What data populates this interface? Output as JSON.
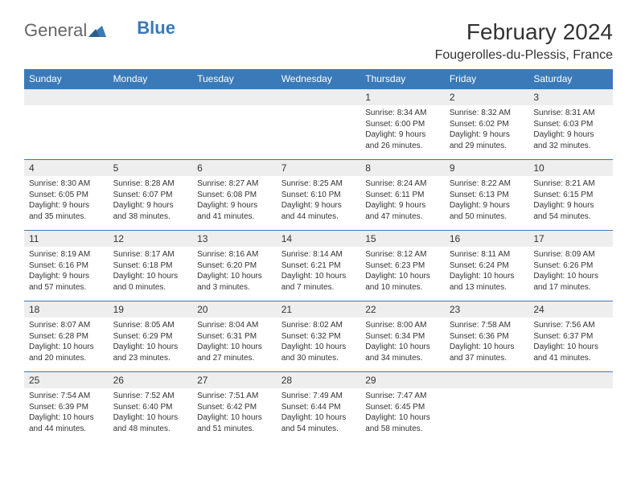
{
  "logo": {
    "general": "General",
    "blue": "Blue"
  },
  "title": "February 2024",
  "location": "Fougerolles-du-Plessis, France",
  "colors": {
    "header_bg": "#3a7ab8",
    "header_text": "#ffffff",
    "daynum_bg": "#eeeeee",
    "border": "#3a7ab8",
    "text": "#333333",
    "logo_gray": "#666666",
    "logo_blue": "#3a7ab8",
    "background": "#ffffff"
  },
  "fonts": {
    "title_size_pt": 28,
    "location_size_pt": 16,
    "dayhead_size_pt": 12,
    "daynum_size_pt": 12,
    "cell_size_pt": 10
  },
  "day_names": [
    "Sunday",
    "Monday",
    "Tuesday",
    "Wednesday",
    "Thursday",
    "Friday",
    "Saturday"
  ],
  "weeks": [
    {
      "nums": [
        "",
        "",
        "",
        "",
        "1",
        "2",
        "3"
      ],
      "cells": [
        {
          "sunrise": "",
          "sunset": "",
          "daylight": ""
        },
        {
          "sunrise": "",
          "sunset": "",
          "daylight": ""
        },
        {
          "sunrise": "",
          "sunset": "",
          "daylight": ""
        },
        {
          "sunrise": "",
          "sunset": "",
          "daylight": ""
        },
        {
          "sunrise": "Sunrise: 8:34 AM",
          "sunset": "Sunset: 6:00 PM",
          "daylight": "Daylight: 9 hours and 26 minutes."
        },
        {
          "sunrise": "Sunrise: 8:32 AM",
          "sunset": "Sunset: 6:02 PM",
          "daylight": "Daylight: 9 hours and 29 minutes."
        },
        {
          "sunrise": "Sunrise: 8:31 AM",
          "sunset": "Sunset: 6:03 PM",
          "daylight": "Daylight: 9 hours and 32 minutes."
        }
      ]
    },
    {
      "nums": [
        "4",
        "5",
        "6",
        "7",
        "8",
        "9",
        "10"
      ],
      "cells": [
        {
          "sunrise": "Sunrise: 8:30 AM",
          "sunset": "Sunset: 6:05 PM",
          "daylight": "Daylight: 9 hours and 35 minutes."
        },
        {
          "sunrise": "Sunrise: 8:28 AM",
          "sunset": "Sunset: 6:07 PM",
          "daylight": "Daylight: 9 hours and 38 minutes."
        },
        {
          "sunrise": "Sunrise: 8:27 AM",
          "sunset": "Sunset: 6:08 PM",
          "daylight": "Daylight: 9 hours and 41 minutes."
        },
        {
          "sunrise": "Sunrise: 8:25 AM",
          "sunset": "Sunset: 6:10 PM",
          "daylight": "Daylight: 9 hours and 44 minutes."
        },
        {
          "sunrise": "Sunrise: 8:24 AM",
          "sunset": "Sunset: 6:11 PM",
          "daylight": "Daylight: 9 hours and 47 minutes."
        },
        {
          "sunrise": "Sunrise: 8:22 AM",
          "sunset": "Sunset: 6:13 PM",
          "daylight": "Daylight: 9 hours and 50 minutes."
        },
        {
          "sunrise": "Sunrise: 8:21 AM",
          "sunset": "Sunset: 6:15 PM",
          "daylight": "Daylight: 9 hours and 54 minutes."
        }
      ]
    },
    {
      "nums": [
        "11",
        "12",
        "13",
        "14",
        "15",
        "16",
        "17"
      ],
      "cells": [
        {
          "sunrise": "Sunrise: 8:19 AM",
          "sunset": "Sunset: 6:16 PM",
          "daylight": "Daylight: 9 hours and 57 minutes."
        },
        {
          "sunrise": "Sunrise: 8:17 AM",
          "sunset": "Sunset: 6:18 PM",
          "daylight": "Daylight: 10 hours and 0 minutes."
        },
        {
          "sunrise": "Sunrise: 8:16 AM",
          "sunset": "Sunset: 6:20 PM",
          "daylight": "Daylight: 10 hours and 3 minutes."
        },
        {
          "sunrise": "Sunrise: 8:14 AM",
          "sunset": "Sunset: 6:21 PM",
          "daylight": "Daylight: 10 hours and 7 minutes."
        },
        {
          "sunrise": "Sunrise: 8:12 AM",
          "sunset": "Sunset: 6:23 PM",
          "daylight": "Daylight: 10 hours and 10 minutes."
        },
        {
          "sunrise": "Sunrise: 8:11 AM",
          "sunset": "Sunset: 6:24 PM",
          "daylight": "Daylight: 10 hours and 13 minutes."
        },
        {
          "sunrise": "Sunrise: 8:09 AM",
          "sunset": "Sunset: 6:26 PM",
          "daylight": "Daylight: 10 hours and 17 minutes."
        }
      ]
    },
    {
      "nums": [
        "18",
        "19",
        "20",
        "21",
        "22",
        "23",
        "24"
      ],
      "cells": [
        {
          "sunrise": "Sunrise: 8:07 AM",
          "sunset": "Sunset: 6:28 PM",
          "daylight": "Daylight: 10 hours and 20 minutes."
        },
        {
          "sunrise": "Sunrise: 8:05 AM",
          "sunset": "Sunset: 6:29 PM",
          "daylight": "Daylight: 10 hours and 23 minutes."
        },
        {
          "sunrise": "Sunrise: 8:04 AM",
          "sunset": "Sunset: 6:31 PM",
          "daylight": "Daylight: 10 hours and 27 minutes."
        },
        {
          "sunrise": "Sunrise: 8:02 AM",
          "sunset": "Sunset: 6:32 PM",
          "daylight": "Daylight: 10 hours and 30 minutes."
        },
        {
          "sunrise": "Sunrise: 8:00 AM",
          "sunset": "Sunset: 6:34 PM",
          "daylight": "Daylight: 10 hours and 34 minutes."
        },
        {
          "sunrise": "Sunrise: 7:58 AM",
          "sunset": "Sunset: 6:36 PM",
          "daylight": "Daylight: 10 hours and 37 minutes."
        },
        {
          "sunrise": "Sunrise: 7:56 AM",
          "sunset": "Sunset: 6:37 PM",
          "daylight": "Daylight: 10 hours and 41 minutes."
        }
      ]
    },
    {
      "nums": [
        "25",
        "26",
        "27",
        "28",
        "29",
        "",
        ""
      ],
      "cells": [
        {
          "sunrise": "Sunrise: 7:54 AM",
          "sunset": "Sunset: 6:39 PM",
          "daylight": "Daylight: 10 hours and 44 minutes."
        },
        {
          "sunrise": "Sunrise: 7:52 AM",
          "sunset": "Sunset: 6:40 PM",
          "daylight": "Daylight: 10 hours and 48 minutes."
        },
        {
          "sunrise": "Sunrise: 7:51 AM",
          "sunset": "Sunset: 6:42 PM",
          "daylight": "Daylight: 10 hours and 51 minutes."
        },
        {
          "sunrise": "Sunrise: 7:49 AM",
          "sunset": "Sunset: 6:44 PM",
          "daylight": "Daylight: 10 hours and 54 minutes."
        },
        {
          "sunrise": "Sunrise: 7:47 AM",
          "sunset": "Sunset: 6:45 PM",
          "daylight": "Daylight: 10 hours and 58 minutes."
        },
        {
          "sunrise": "",
          "sunset": "",
          "daylight": ""
        },
        {
          "sunrise": "",
          "sunset": "",
          "daylight": ""
        }
      ]
    }
  ]
}
